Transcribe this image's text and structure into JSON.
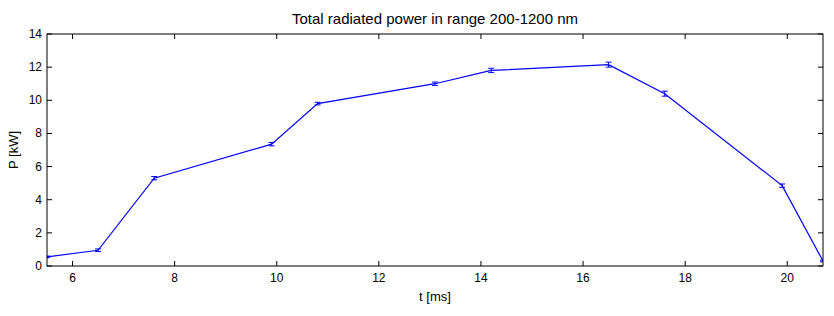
{
  "chart_data": {
    "type": "line",
    "title": "Total radiated power in range 200-1200 nm",
    "x_label": "t [ms]",
    "y_label": "P [kW]",
    "x": [
      5.5,
      6.5,
      7.6,
      9.9,
      10.8,
      13.1,
      14.2,
      16.5,
      17.6,
      19.9,
      20.7
    ],
    "series": [
      {
        "name": "P",
        "color": "#0000ff",
        "values": [
          0.55,
          0.95,
          5.3,
          7.35,
          9.8,
          11.0,
          11.8,
          12.15,
          10.4,
          4.85,
          0.3
        ],
        "errors": [
          0.05,
          0.08,
          0.1,
          0.1,
          0.08,
          0.1,
          0.13,
          0.15,
          0.15,
          0.1,
          0.05
        ]
      }
    ],
    "xlim": [
      5.5,
      20.7
    ],
    "xticks": [
      6,
      8,
      10,
      12,
      14,
      16,
      18,
      20
    ],
    "ylim": [
      0,
      14
    ],
    "yticks": [
      0,
      2,
      4,
      6,
      8,
      10,
      12,
      14
    ],
    "grid": false
  }
}
